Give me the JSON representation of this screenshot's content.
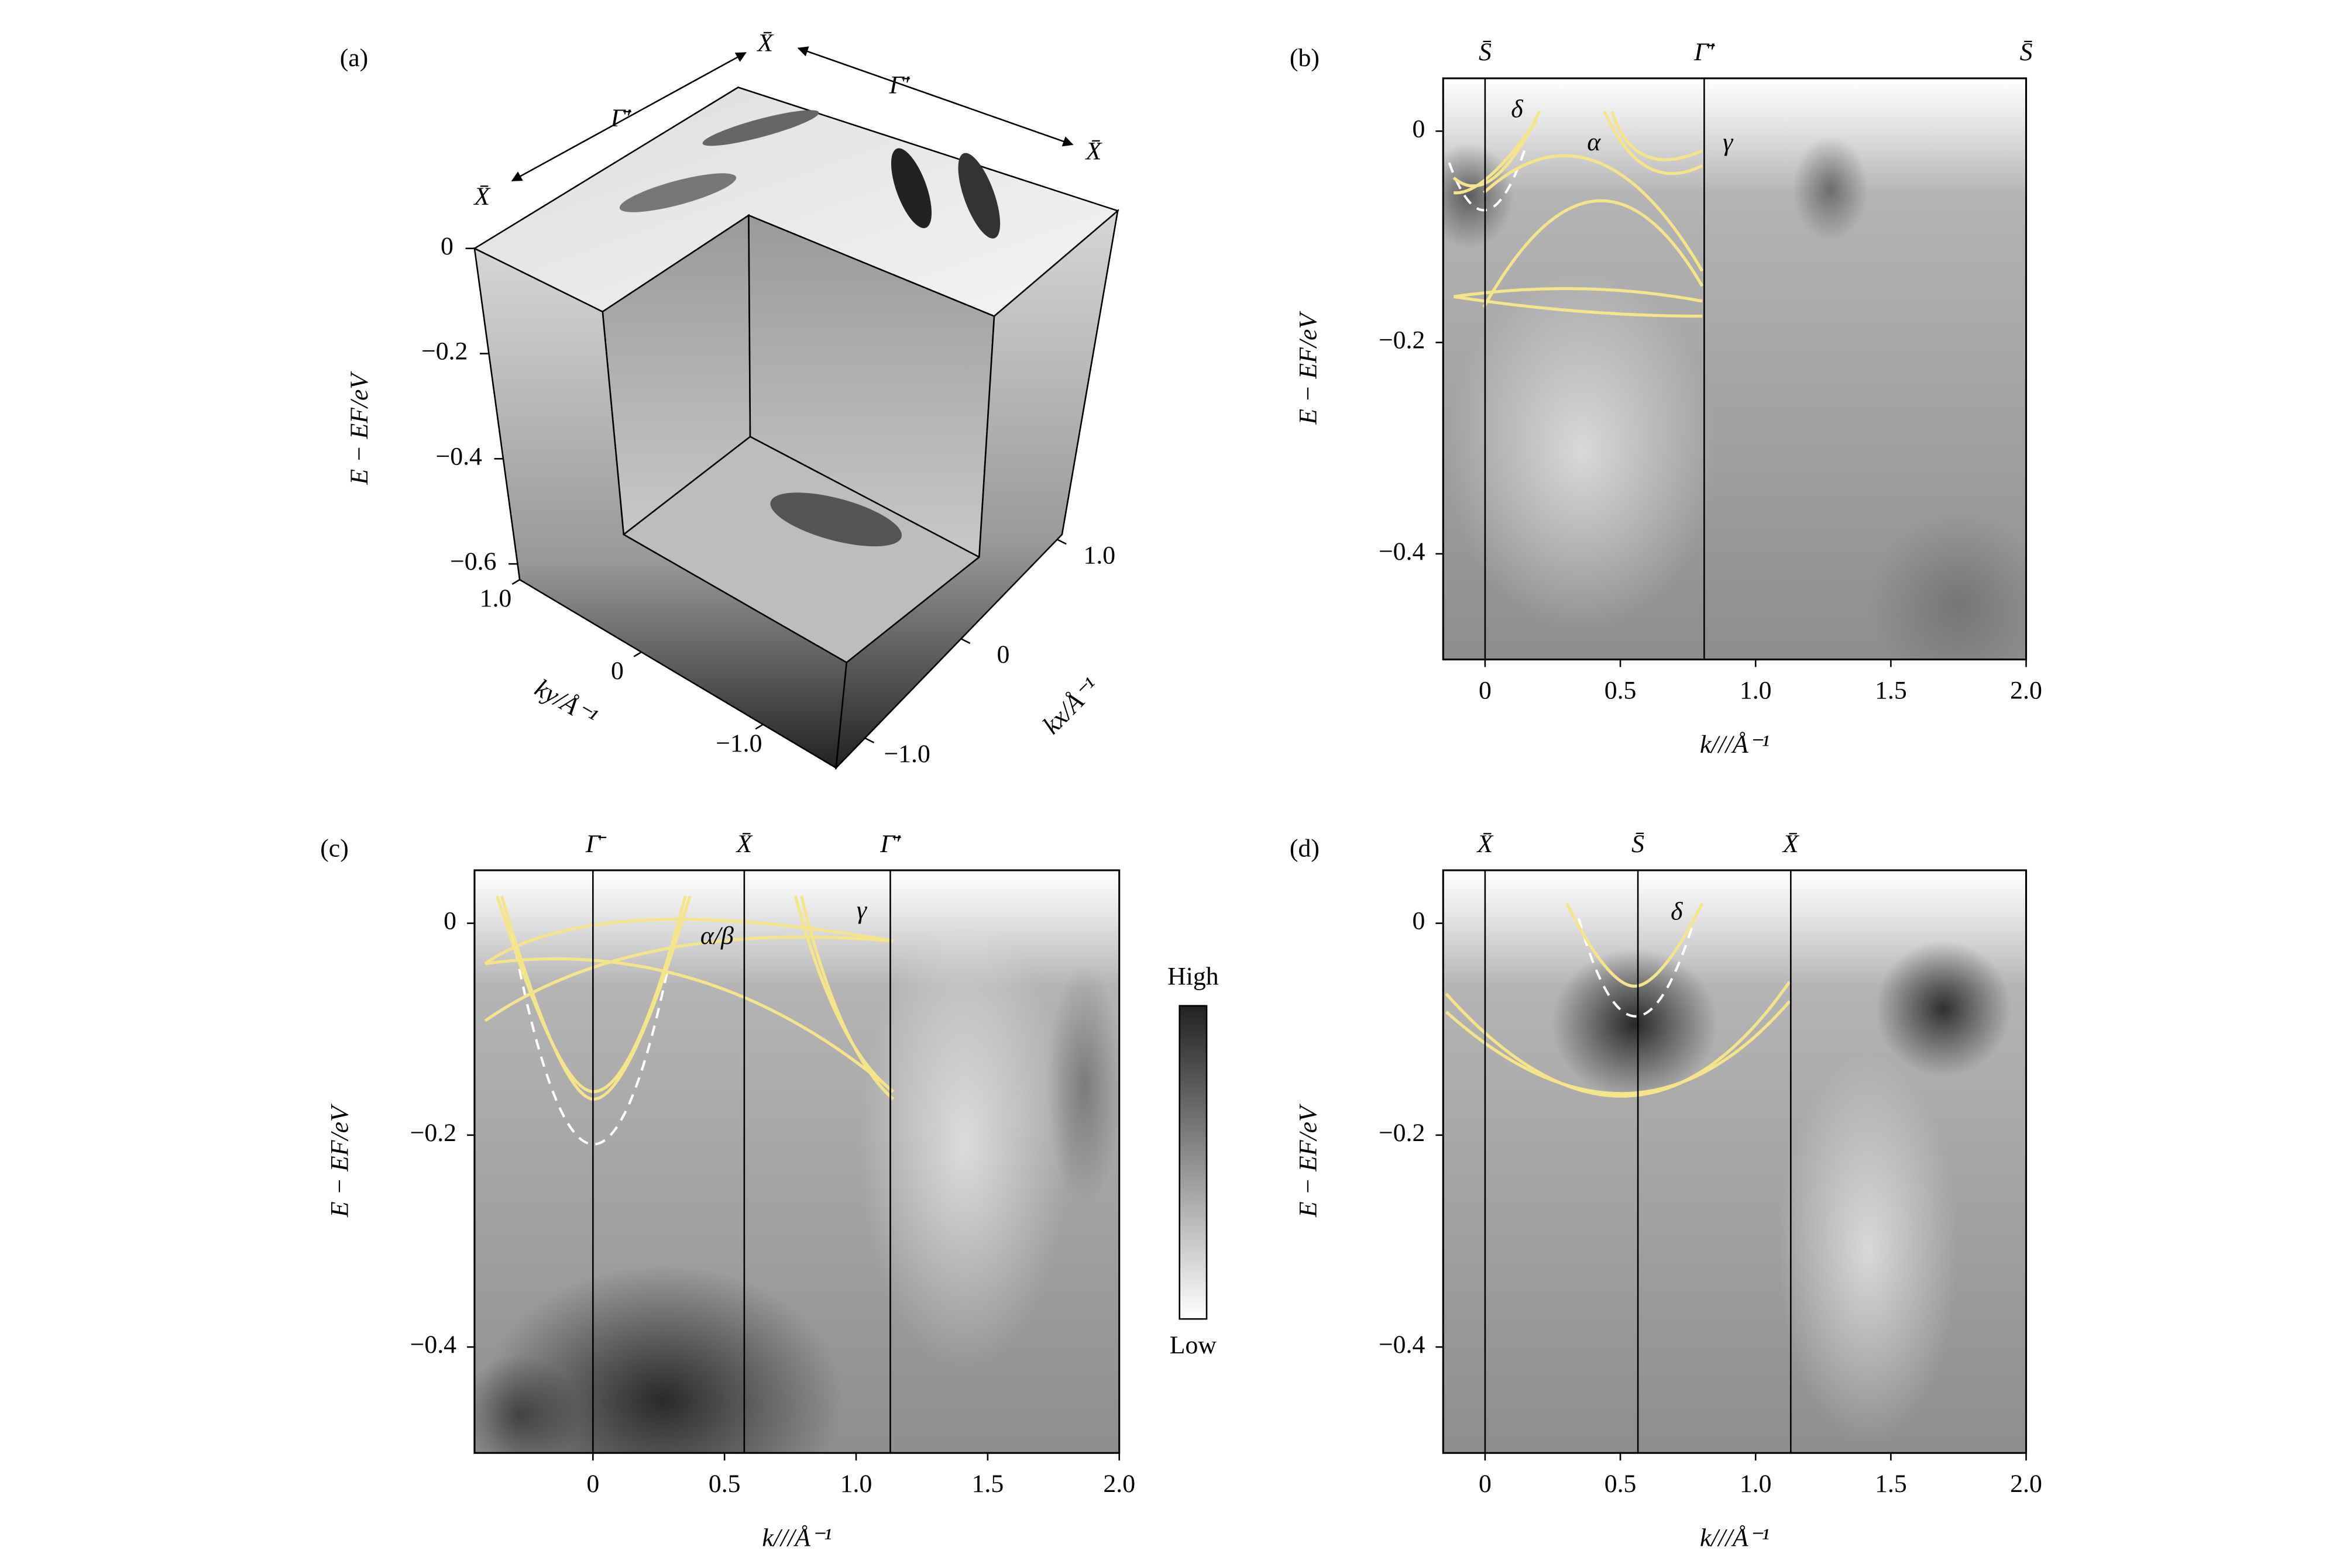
{
  "chart_data": [
    {
      "type": "cube",
      "label": "(a)",
      "y_label": "E − EF/eV",
      "ylim": [
        -0.63,
        0
      ],
      "yticks": [
        0,
        {
          "value": -0.2,
          "label": "−0.2"
        },
        {
          "value": -0.4,
          "label": "−0.4"
        },
        {
          "value": -0.6,
          "label": "−0.6"
        }
      ],
      "x_label": "ky/Å⁻¹",
      "xlim": [
        -1.6,
        1.0
      ],
      "xticks": [
        {
          "value": 1,
          "label": "1.0"
        },
        0,
        {
          "value": -1,
          "label": "−1.0"
        }
      ],
      "z_label": "kx/Å⁻¹",
      "zlim": [
        -1.3,
        1.05
      ],
      "zticks": [
        {
          "value": 1,
          "label": "1.0"
        },
        0,
        {
          "value": -1,
          "label": "−1.0"
        }
      ],
      "annotations": [
        "X̄",
        "Γ̄′",
        "X̄",
        "Γ̄′",
        "X̄"
      ]
    },
    {
      "type": "heatmap",
      "label": "(b)",
      "x_label": "k///Å⁻¹",
      "y_label": "E − EF/eV",
      "xlim": [
        -0.155,
        2.0
      ],
      "ylim": [
        -0.5,
        0.05
      ],
      "xticks": [
        0,
        0.5,
        {
          "value": 1,
          "label": "1.0"
        },
        1.5,
        {
          "value": 2,
          "label": "2.0"
        }
      ],
      "yticks": [
        0,
        {
          "value": -0.2,
          "label": "−0.2"
        },
        {
          "value": -0.4,
          "label": "−0.4"
        }
      ],
      "symmetry_points": [
        {
          "label": "S̄",
          "k": 0
        },
        {
          "label": "Γ̄′",
          "k": 0.81
        },
        {
          "label": "S̄",
          "k": 2.0
        }
      ],
      "annotations": [
        "δ",
        "α",
        "γ"
      ]
    },
    {
      "type": "heatmap",
      "label": "(c)",
      "x_label": "k///Å⁻¹",
      "y_label": "E − EF/eV",
      "xlim": [
        -0.45,
        2.0
      ],
      "ylim": [
        -0.5,
        0.05
      ],
      "xticks": [
        0,
        0.5,
        {
          "value": 1,
          "label": "1.0"
        },
        1.5,
        {
          "value": 2,
          "label": "2.0"
        }
      ],
      "yticks": [
        0,
        {
          "value": -0.2,
          "label": "−0.2"
        },
        {
          "value": -0.4,
          "label": "−0.4"
        }
      ],
      "symmetry_points": [
        {
          "label": "Γ̄",
          "k": 0
        },
        {
          "label": "X̄",
          "k": 0.575
        },
        {
          "label": "Γ̄′",
          "k": 1.13
        }
      ],
      "annotations": [
        "α/β",
        "γ"
      ],
      "colorbar_labels": [
        "High",
        "Low"
      ]
    },
    {
      "type": "heatmap",
      "label": "(d)",
      "x_label": "k///Å⁻¹",
      "y_label": "E − EF/eV",
      "xlim": [
        -0.155,
        2.0
      ],
      "ylim": [
        -0.5,
        0.05
      ],
      "xticks": [
        0,
        0.5,
        {
          "value": 1,
          "label": "1.0"
        },
        1.5,
        {
          "value": 2,
          "label": "2.0"
        }
      ],
      "yticks": [
        0,
        {
          "value": -0.2,
          "label": "−0.2"
        },
        {
          "value": -0.4,
          "label": "−0.4"
        }
      ],
      "symmetry_points": [
        {
          "label": "X̄",
          "k": 0
        },
        {
          "label": "S̄",
          "k": 0.565
        },
        {
          "label": "X̄",
          "k": 1.13
        }
      ],
      "annotations": [
        "δ"
      ]
    }
  ]
}
